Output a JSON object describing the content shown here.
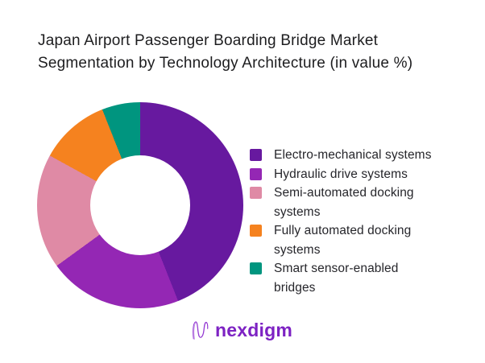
{
  "header": {
    "title": "Japan Airport Passenger Boarding Bridge Market Segmentation by Technology Architecture (in value %)",
    "title_lines": [
      "Japan Airport Passenger Boarding Bridge Market",
      "Segmentation by Technology Architecture (in value %)"
    ]
  },
  "chart_data": {
    "type": "pie",
    "subtype": "donut",
    "title": "Japan Airport Passenger Boarding Bridge Market Segmentation by Technology Architecture (in value %)",
    "unit": "value %",
    "labels": [
      "Electro-mechanical systems",
      "Hydraulic drive systems",
      "Semi-automated docking systems",
      "Fully automated docking systems",
      "Smart sensor-enabled bridges"
    ],
    "values": [
      44,
      21,
      18,
      11,
      6
    ],
    "colors": [
      "#67199F",
      "#9427B4",
      "#DF8AA5",
      "#F5821F",
      "#00957F"
    ],
    "start_angle_deg": 0,
    "direction": "clockwise",
    "inner_radius_ratio": 0.48,
    "legend_position": "right",
    "data_labels_shown": false
  },
  "legend": {
    "items": [
      {
        "label": "Electro-mechanical systems",
        "lines": [
          "Electro-mechanical systems"
        ],
        "color": "#67199F"
      },
      {
        "label": "Hydraulic drive systems",
        "lines": [
          "Hydraulic drive systems"
        ],
        "color": "#9427B4"
      },
      {
        "label": "Semi-automated docking systems",
        "lines": [
          "Semi-automated docking",
          "systems"
        ],
        "color": "#DF8AA5"
      },
      {
        "label": "Fully automated docking systems",
        "lines": [
          "Fully automated docking",
          "systems"
        ],
        "color": "#F5821F"
      },
      {
        "label": "Smart sensor-enabled bridges",
        "lines": [
          "Smart sensor-enabled",
          "bridges"
        ],
        "color": "#00957F"
      }
    ]
  },
  "footer": {
    "brand": "nexdigm",
    "brand_color": "#7D22C3",
    "icon_color": "#8E2FD0"
  }
}
